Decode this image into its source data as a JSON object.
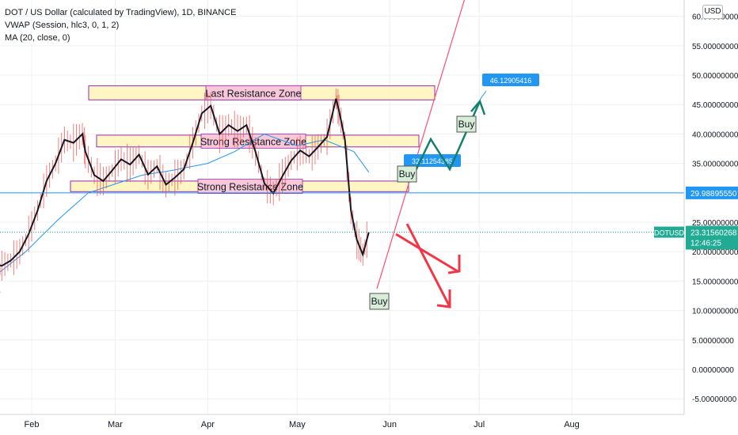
{
  "legend": {
    "title": "DOT / US Dollar (calculated by TradingView), 1D, BINANCE",
    "vwap": "VWAP (Session, hlc3, 0, 1, 2)",
    "ma": "MA (20, close, 0)"
  },
  "currency_badge": "USD",
  "colors": {
    "candle": "#131722",
    "wick": "#ef5350",
    "ma": "#2196f3",
    "grid": "#eef0f3",
    "zone_fill": "#fff5b8",
    "zone_border": "#9c27b0",
    "zone_label_bg": "#f8c8d8",
    "trend_line": "#ff4f6e",
    "hline": "#2196f3",
    "green_arrow": "#13806b",
    "red_arrow": "#f23645",
    "label_bg": "#2196f3",
    "price_tag_bg": "#2196f3",
    "current_tag_bg": "#22ab94"
  },
  "chart_data": {
    "type": "line",
    "title": "DOT / US Dollar (calculated by TradingView), 1D, BINANCE",
    "xlabel": "",
    "ylabel": "",
    "ylim": [
      -6.5,
      62.5
    ],
    "x_ticks": [
      "Feb",
      "Mar",
      "Apr",
      "May",
      "Jun",
      "Jul",
      "Aug"
    ],
    "y_ticks": [
      "-5.00000000",
      "0.00000000",
      "5.00000000",
      "10.00000000",
      "15.00000000",
      "20.00000000",
      "25.00000000",
      "30.00000000",
      "35.00000000",
      "40.00000000",
      "45.00000000",
      "50.00000000",
      "55.00000000",
      "60.00000000"
    ],
    "series": [
      {
        "name": "DOTUSD",
        "x": [
          "Jan 10",
          "Jan 13",
          "Jan 16",
          "Jan 19",
          "Jan 22",
          "Jan 25",
          "Jan 28",
          "Jan 31",
          "Feb 3",
          "Feb 6",
          "Feb 9",
          "Feb 12",
          "Feb 15",
          "Feb 18",
          "Feb 19",
          "Feb 22",
          "Feb 25",
          "Feb 28",
          "Mar 3",
          "Mar 6",
          "Mar 9",
          "Mar 12",
          "Mar 15",
          "Mar 18",
          "Mar 21",
          "Mar 24",
          "Mar 27",
          "Mar 30",
          "Apr 2",
          "Apr 5",
          "Apr 8",
          "Apr 11",
          "Apr 14",
          "Apr 17",
          "Apr 20",
          "Apr 23",
          "Apr 26",
          "Apr 29",
          "May 2",
          "May 5",
          "May 8",
          "May 11",
          "May 14",
          "May 15",
          "May 17",
          "May 19",
          "May 21",
          "May 23",
          "May 25"
        ],
        "y": [
          17,
          18.5,
          17.5,
          18,
          17.6,
          18.5,
          20,
          23,
          27,
          32,
          35,
          39,
          38.5,
          40,
          37,
          33,
          32,
          33.8,
          35.7,
          34.8,
          36.5,
          33.1,
          34.5,
          31.4,
          32.6,
          34,
          38.5,
          43.5,
          44.8,
          40,
          41.5,
          40.5,
          41.5,
          37,
          31.6,
          29.9,
          32.8,
          35.5,
          37.2,
          36.2,
          37.8,
          39.5,
          46,
          44,
          39,
          27,
          22,
          19.5,
          23.3
        ]
      },
      {
        "name": "MA (20, close, 0)",
        "x": [
          "Jan 10",
          "Jan 20",
          "Jan 30",
          "Feb 10",
          "Feb 20",
          "Mar 1",
          "Mar 10",
          "Mar 20",
          "Apr 1",
          "Apr 10",
          "Apr 20",
          "May 1",
          "May 10",
          "May 20",
          "May 25"
        ],
        "y": [
          13,
          16,
          20,
          25.5,
          30,
          31.5,
          33,
          33.8,
          35,
          37,
          40,
          38,
          39,
          37,
          33.5
        ]
      }
    ],
    "zones": [
      {
        "label": "Last Resistance Zone",
        "low": 45.8,
        "high": 48.2
      },
      {
        "label": "Strong Resistance Zone",
        "low": 37.8,
        "high": 39.8
      },
      {
        "label": "Strong Resistance Zone",
        "low": 30.2,
        "high": 32
      }
    ],
    "annotations": {
      "buy_labels": [
        "Buy",
        "Buy",
        "Buy"
      ],
      "price_labels": [
        "32.11254385",
        "46.12905416"
      ],
      "horizontal_line": "29.98895550",
      "current_price": "23.31560268",
      "current_symbol": "DOTUSD",
      "countdown": "12:46:25"
    },
    "grid": true
  }
}
